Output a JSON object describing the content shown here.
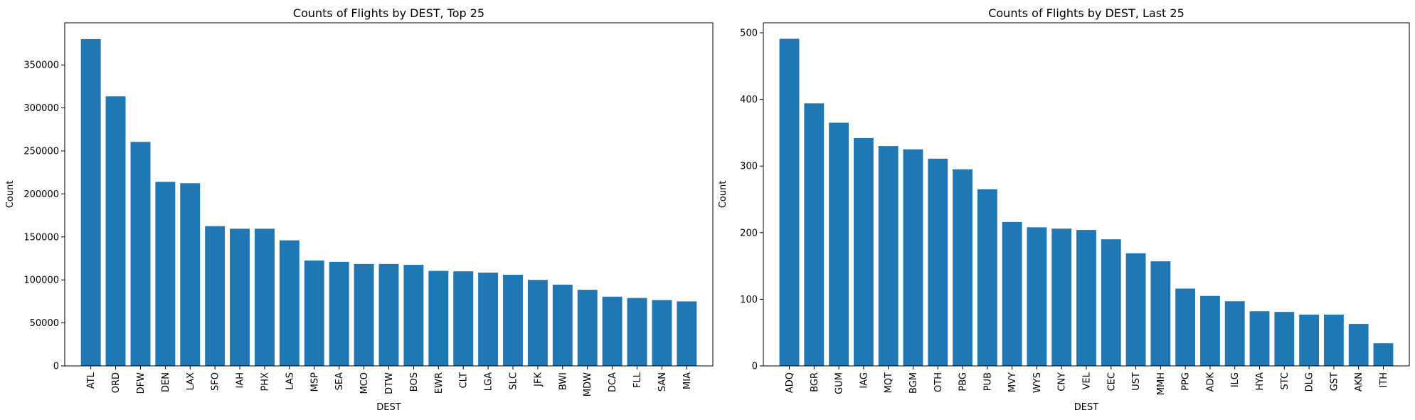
{
  "chart_data": [
    {
      "type": "bar",
      "title": "Counts of Flights by DEST, Top 25",
      "xlabel": "DEST",
      "ylabel": "Count",
      "ylim": [
        0,
        399000
      ],
      "yticks": [
        0,
        50000,
        100000,
        150000,
        200000,
        250000,
        300000,
        350000
      ],
      "color": "#1f77b4",
      "categories": [
        "ATL",
        "ORD",
        "DFW",
        "DEN",
        "LAX",
        "SFO",
        "IAH",
        "PHX",
        "LAS",
        "MSP",
        "SEA",
        "MCO",
        "DTW",
        "BOS",
        "EWR",
        "CLT",
        "LGA",
        "SLC",
        "JFK",
        "BWI",
        "MDW",
        "DCA",
        "FLL",
        "SAN",
        "MIA"
      ],
      "values": [
        380000,
        313500,
        260500,
        214000,
        212500,
        162500,
        159500,
        159500,
        146000,
        122500,
        121000,
        118500,
        118500,
        117500,
        110500,
        110000,
        108500,
        106000,
        100000,
        94500,
        88500,
        80500,
        79000,
        76500,
        75000
      ]
    },
    {
      "type": "bar",
      "title": "Counts of Flights by DEST, Last 25",
      "xlabel": "DEST",
      "ylabel": "Count",
      "ylim": [
        0,
        515
      ],
      "yticks": [
        0,
        100,
        200,
        300,
        400,
        500
      ],
      "color": "#1f77b4",
      "categories": [
        "ADQ",
        "BGR",
        "GUM",
        "IAG",
        "MQT",
        "BGM",
        "OTH",
        "PBG",
        "PUB",
        "MVY",
        "WYS",
        "CNY",
        "VEL",
        "CEC",
        "UST",
        "MMH",
        "PPG",
        "ADK",
        "ILG",
        "HYA",
        "STC",
        "DLG",
        "GST",
        "AKN",
        "ITH"
      ],
      "values": [
        491,
        394,
        365,
        342,
        330,
        325,
        311,
        295,
        265,
        216,
        208,
        206,
        204,
        190,
        169,
        157,
        116,
        105,
        97,
        82,
        81,
        77,
        77,
        63,
        34
      ]
    }
  ]
}
